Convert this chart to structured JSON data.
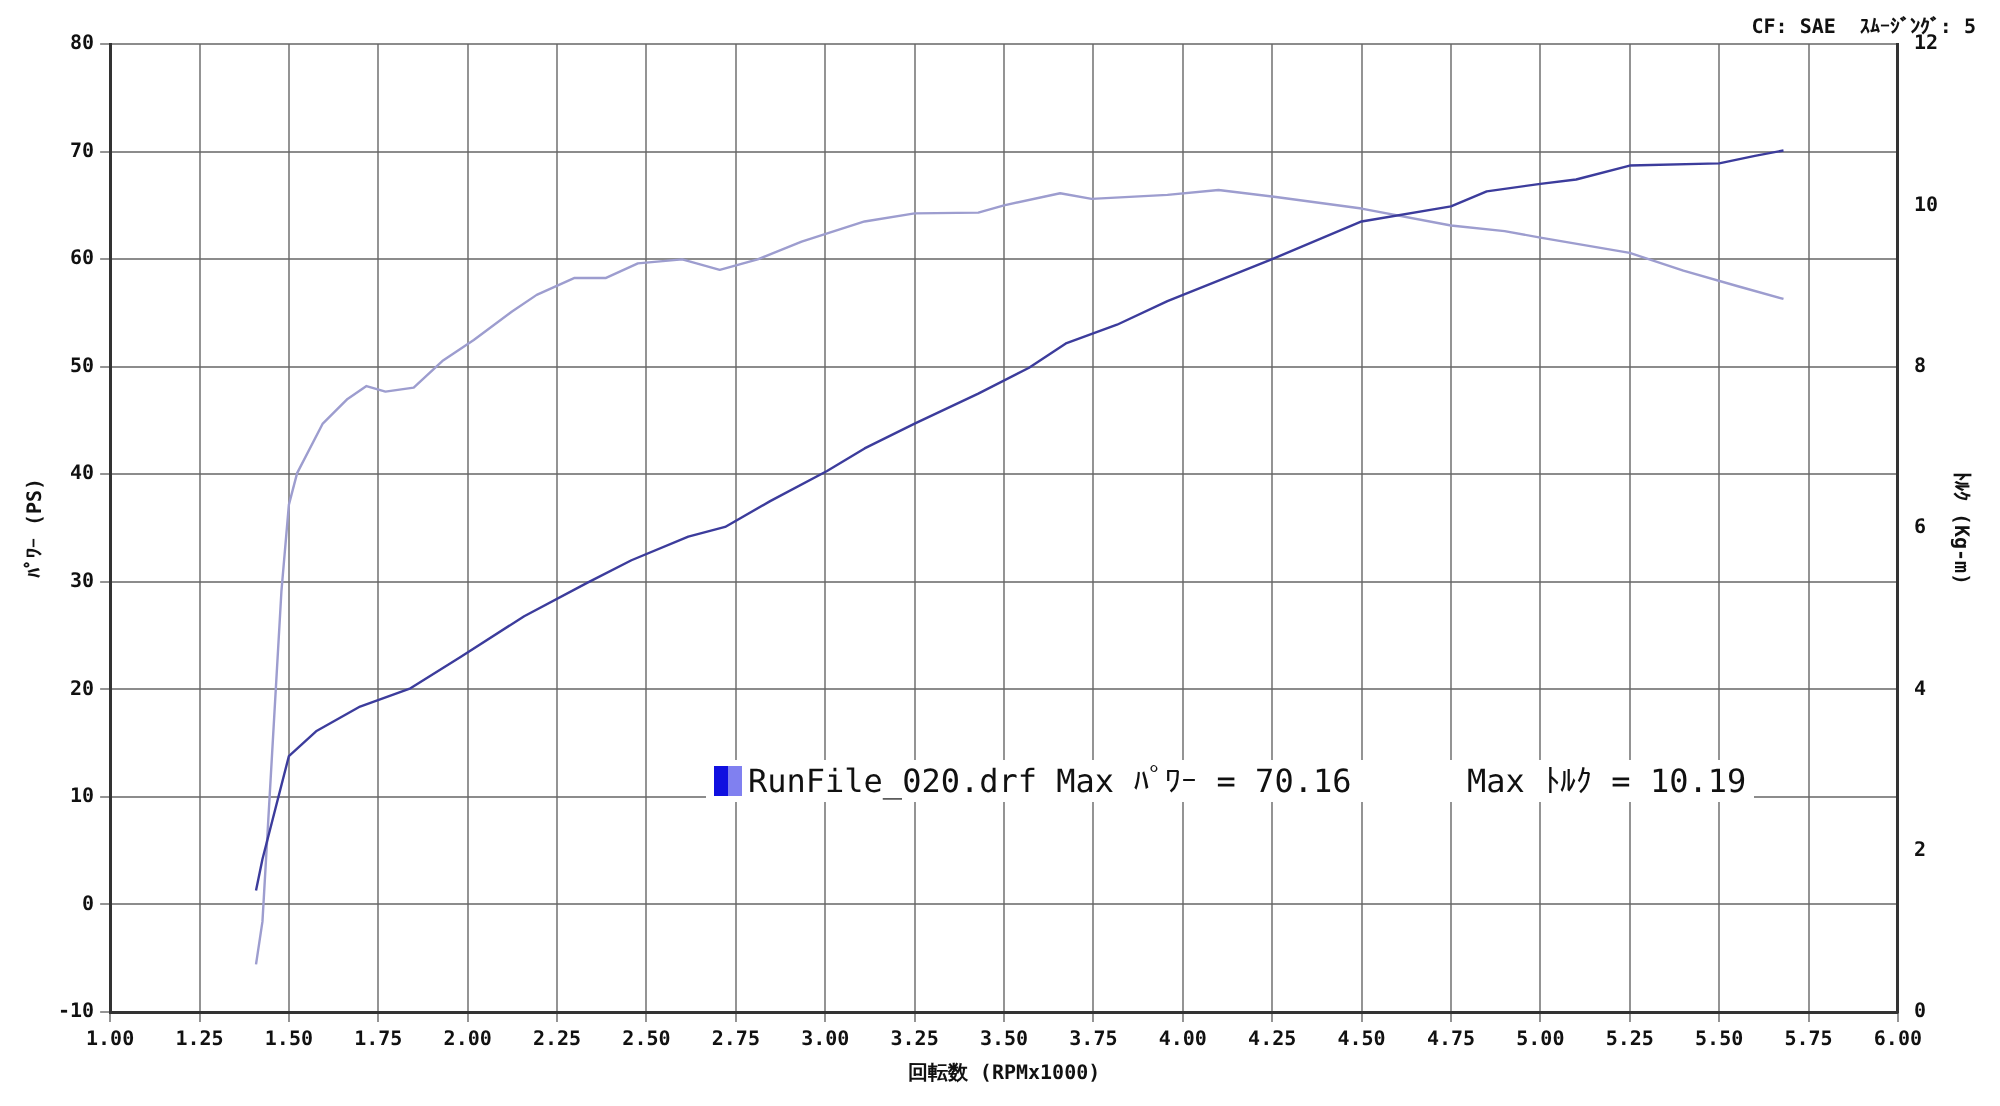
{
  "chart_data": {
    "type": "line",
    "subtitle": "CF: SAE  ｽﾑｰｼﾞﾝｸﾞ: 5",
    "xlabel": "回転数 (RPMx1000)",
    "ylabel": "ﾊﾟﾜｰ (PS)",
    "y2label": "ﾄﾙｸ (Kg-m)",
    "xlim": [
      1,
      6
    ],
    "xticks": [
      {
        "value": 1,
        "label": "1.00"
      },
      {
        "value": 1.25,
        "label": "1.25"
      },
      {
        "value": 1.5,
        "label": "1.50"
      },
      {
        "value": 1.75,
        "label": "1.75"
      },
      {
        "value": 2,
        "label": "2.00"
      },
      {
        "value": 2.25,
        "label": "2.25"
      },
      {
        "value": 2.5,
        "label": "2.50"
      },
      {
        "value": 2.75,
        "label": "2.75"
      },
      {
        "value": 3,
        "label": "3.00"
      },
      {
        "value": 3.25,
        "label": "3.25"
      },
      {
        "value": 3.5,
        "label": "3.50"
      },
      {
        "value": 3.75,
        "label": "3.75"
      },
      {
        "value": 4,
        "label": "4.00"
      },
      {
        "value": 4.25,
        "label": "4.25"
      },
      {
        "value": 4.5,
        "label": "4.50"
      },
      {
        "value": 4.75,
        "label": "4.75"
      },
      {
        "value": 5,
        "label": "5.00"
      },
      {
        "value": 5.25,
        "label": "5.25"
      },
      {
        "value": 5.5,
        "label": "5.50"
      },
      {
        "value": 5.75,
        "label": "5.75"
      },
      {
        "value": 6,
        "label": "6.00"
      }
    ],
    "ylim": [
      -10,
      80
    ],
    "yticks": [
      -10,
      0,
      10,
      20,
      30,
      40,
      50,
      60,
      70,
      80
    ],
    "y2lim": [
      0,
      12
    ],
    "y2ticks": [
      0,
      2,
      4,
      6,
      8,
      10,
      12
    ],
    "grid": true,
    "marker": "none",
    "line_style": "solid",
    "annotations": [
      "RunFile_020.drf Max ﾊﾟﾜｰ = 70.16      Max ﾄﾙｸ = 10.19"
    ],
    "series": [
      {
        "color": "#3c3c9c",
        "axis": "y",
        "x": [
          1.408,
          1.426,
          1.5,
          1.576,
          1.699,
          1.84,
          1.98,
          2.158,
          2.334,
          2.458,
          2.617,
          2.72,
          2.846,
          3.005,
          3.11,
          3.25,
          3.428,
          3.57,
          3.675,
          3.816,
          3.957,
          4.25,
          4.5,
          4.75,
          4.85,
          5.0,
          5.1,
          5.25,
          5.5,
          5.6,
          5.68
        ],
        "values": [
          1.3,
          4.2,
          13.8,
          16.1,
          18.4,
          20.1,
          23.0,
          26.8,
          29.9,
          32.0,
          34.2,
          35.1,
          37.5,
          40.3,
          42.4,
          44.7,
          47.5,
          49.9,
          52.2,
          53.9,
          56.1,
          60.0,
          63.5,
          64.9,
          66.3,
          67.0,
          67.4,
          68.7,
          68.9,
          69.6,
          70.1
        ]
      },
      {
        "color": "#9d9dcf",
        "axis": "y2",
        "x": [
          1.408,
          1.426,
          1.479,
          1.5,
          1.523,
          1.594,
          1.664,
          1.717,
          1.77,
          1.849,
          1.929,
          2.017,
          2.123,
          2.193,
          2.299,
          2.387,
          2.476,
          2.6,
          2.705,
          2.811,
          2.934,
          3.11,
          3.25,
          3.428,
          3.5,
          3.657,
          3.745,
          3.957,
          4.1,
          4.25,
          4.5,
          4.75,
          4.9,
          5.0,
          5.25,
          5.4,
          5.55,
          5.68
        ],
        "values": [
          0.59,
          1.12,
          5.21,
          6.29,
          6.68,
          7.29,
          7.6,
          7.76,
          7.69,
          7.74,
          8.07,
          8.33,
          8.68,
          8.89,
          9.1,
          9.1,
          9.28,
          9.33,
          9.2,
          9.33,
          9.55,
          9.8,
          9.9,
          9.91,
          10.0,
          10.15,
          10.08,
          10.13,
          10.19,
          10.11,
          9.96,
          9.75,
          9.68,
          9.6,
          9.41,
          9.19,
          9.0,
          8.84
        ]
      }
    ]
  }
}
